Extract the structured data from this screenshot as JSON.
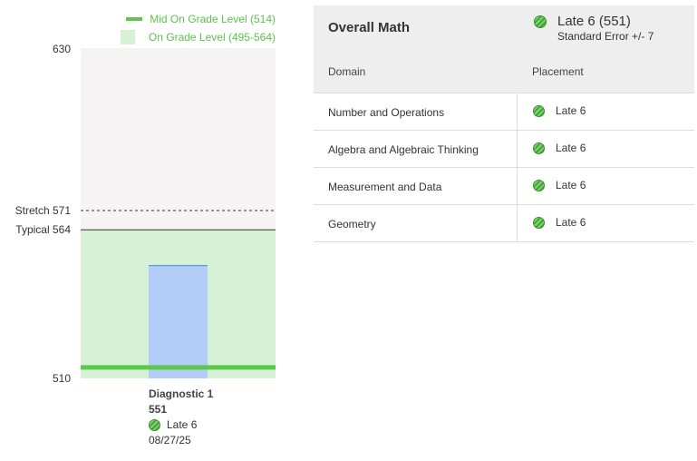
{
  "legend": {
    "mid_label": "Mid On Grade Level (514)",
    "band_label": "On Grade Level (495-564)"
  },
  "chart_data": {
    "type": "bar",
    "categories": [
      "Diagnostic 1"
    ],
    "values": [
      551
    ],
    "ylim": [
      510,
      630
    ],
    "y_ticks": [
      "630",
      "510"
    ],
    "reference_lines": [
      {
        "label": "Stretch 571",
        "value": 571,
        "style": "dashed"
      },
      {
        "label": "Typical 564",
        "value": 564,
        "style": "solid"
      }
    ],
    "mid_line": 514,
    "band": [
      495,
      564
    ],
    "colors": {
      "bar": "#b2cdf8",
      "bar_top": "#4a86e8",
      "band": "#d6f1d6",
      "mid": "#5ac84a",
      "plot_bg": "#f5f3f4"
    }
  },
  "diagnostic": {
    "title": "Diagnostic 1",
    "score": "551",
    "placement": "Late 6",
    "date": "08/27/25",
    "icon": "placement-striped-circle-icon"
  },
  "table": {
    "title": "Overall Math",
    "overall_placement": "Late 6 (551)",
    "standard_error": "Standard Error +/- 7",
    "col_domain": "Domain",
    "col_placement": "Placement",
    "rows": [
      {
        "domain": "Number and Operations",
        "placement": "Late 6"
      },
      {
        "domain": "Algebra and Algebraic Thinking",
        "placement": "Late 6"
      },
      {
        "domain": "Measurement and Data",
        "placement": "Late 6"
      },
      {
        "domain": "Geometry",
        "placement": "Late 6"
      }
    ]
  }
}
